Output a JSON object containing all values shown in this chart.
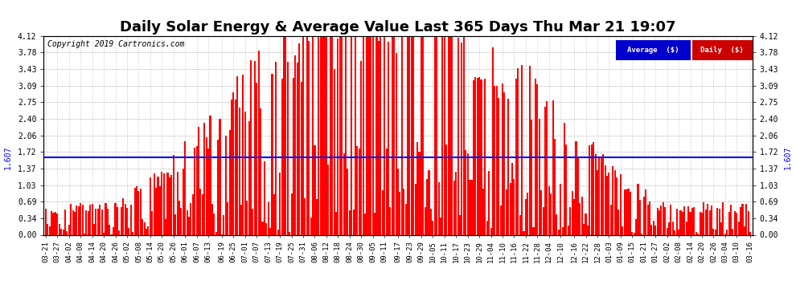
{
  "title": "Daily Solar Energy & Average Value Last 365 Days Thu Mar 21 19:07",
  "copyright": "Copyright 2019 Cartronics.com",
  "average_value": 1.607,
  "ylim": [
    0.0,
    4.12
  ],
  "yticks": [
    0.0,
    0.34,
    0.69,
    1.03,
    1.37,
    1.72,
    2.06,
    2.4,
    2.75,
    3.09,
    3.43,
    3.78,
    4.12
  ],
  "bar_color": "#ff0000",
  "avg_line_color": "#0000ff",
  "background_color": "#ffffff",
  "grid_color": "#aaaaaa",
  "title_fontsize": 13,
  "x_labels": [
    "03-21",
    "03-27",
    "04-02",
    "04-08",
    "04-14",
    "04-20",
    "04-26",
    "05-02",
    "05-08",
    "05-14",
    "05-20",
    "05-26",
    "06-01",
    "06-07",
    "06-13",
    "06-19",
    "06-25",
    "07-01",
    "07-07",
    "07-13",
    "07-19",
    "07-25",
    "07-31",
    "08-06",
    "08-12",
    "08-18",
    "08-24",
    "08-30",
    "09-05",
    "09-11",
    "09-17",
    "09-23",
    "09-29",
    "10-05",
    "10-11",
    "10-17",
    "10-23",
    "10-29",
    "11-04",
    "11-10",
    "11-16",
    "11-22",
    "11-28",
    "12-04",
    "12-10",
    "12-16",
    "12-22",
    "12-28",
    "01-03",
    "01-09",
    "01-15",
    "01-21",
    "01-27",
    "02-02",
    "02-08",
    "02-14",
    "02-20",
    "02-26",
    "03-04",
    "03-10",
    "03-16"
  ],
  "legend_avg_color": "#0000cc",
  "legend_daily_color": "#cc0000"
}
